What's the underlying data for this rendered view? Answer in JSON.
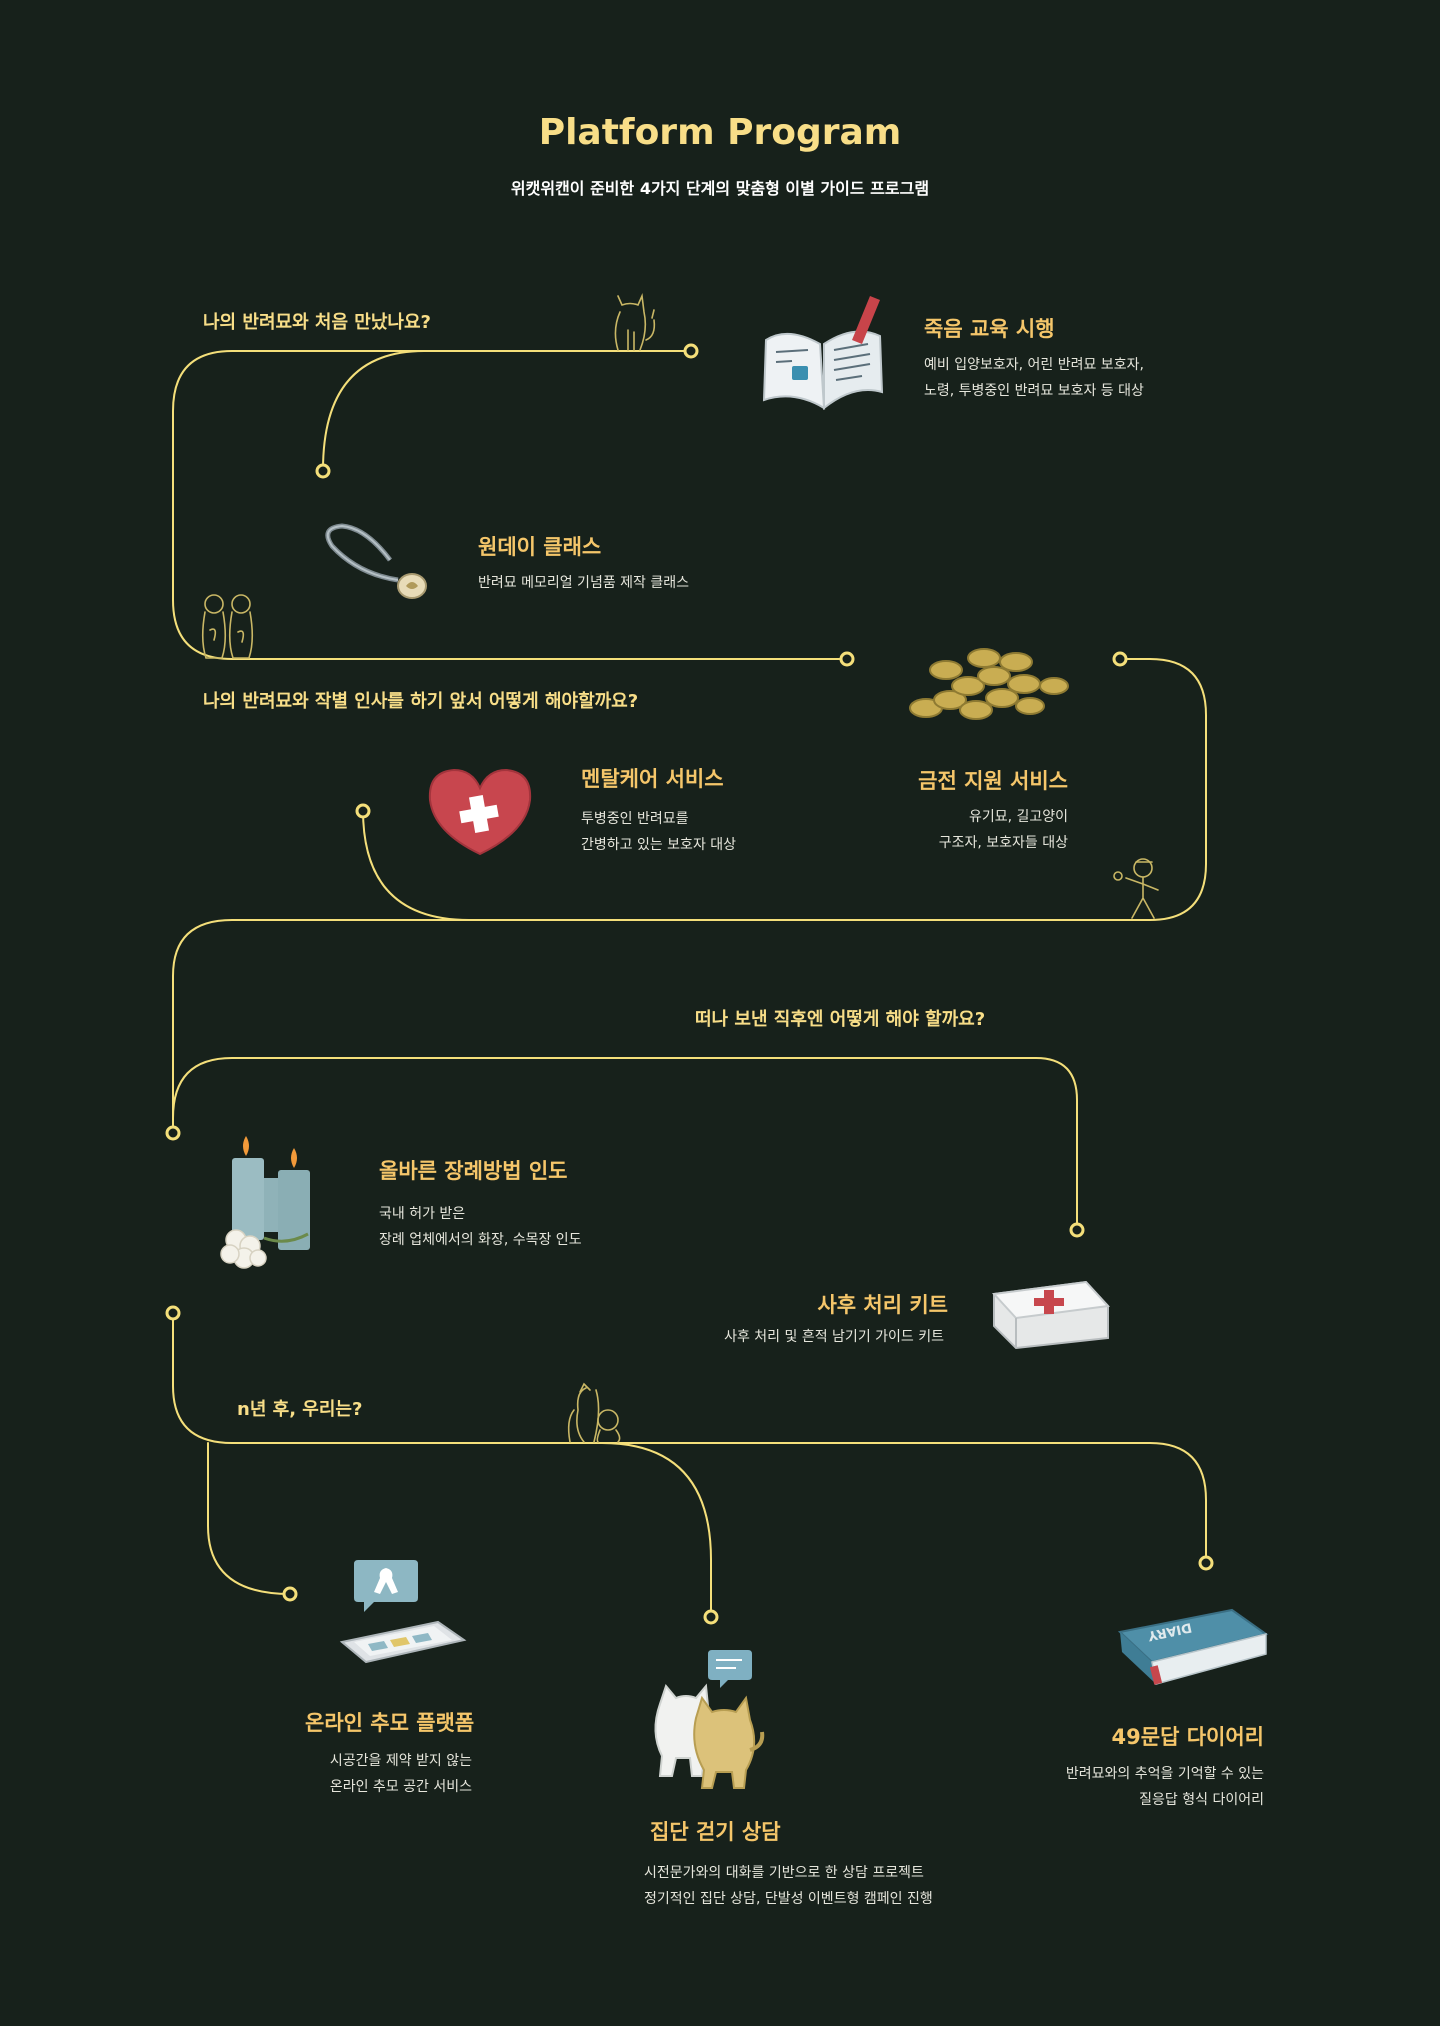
{
  "header": {
    "title": "Platform Program",
    "subtitle": "위캣위캔이 준비한 4가지 단계의 맞춤형 이별 가이드 프로그램"
  },
  "stages": [
    {
      "question": "나의 반려묘와 처음 만났나요?",
      "programs": [
        {
          "title": "죽음 교육 시행",
          "lines": [
            "예비 입양보호자, 어린 반려묘 보호자,",
            "노령, 투병중인 반려묘 보호자 등 대상"
          ],
          "icon": "open-book-icon"
        },
        {
          "title": "원데이 클래스",
          "lines": [
            "반려묘 메모리얼 기념품 제작 클래스"
          ],
          "icon": "pendant-necklace-icon"
        }
      ]
    },
    {
      "question": "나의 반려묘와 작별 인사를 하기 앞서 어떻게 해야할까요?",
      "programs": [
        {
          "title": "멘탈케어 서비스",
          "lines": [
            "투병중인 반려묘를",
            "간병하고 있는 보호자 대상"
          ],
          "icon": "heart-cross-icon"
        },
        {
          "title": "금전 지원 서비스",
          "lines": [
            "유기묘, 길고양이",
            "구조자, 보호자들 대상"
          ],
          "icon": "coins-icon"
        }
      ]
    },
    {
      "question": "떠나 보낸 직후엔 어떻게 해야 할까요?",
      "programs": [
        {
          "title": "올바른 장례방법 인도",
          "lines": [
            "국내 허가 받은",
            "장례 업체에서의 화장, 수목장 인도"
          ],
          "icon": "candles-flower-icon"
        },
        {
          "title": "사후 처리 키트",
          "lines": [
            "사후 처리 및 흔적 남기기 가이드 키트"
          ],
          "icon": "first-aid-kit-icon"
        }
      ]
    },
    {
      "question": "n년 후, 우리는?",
      "programs": [
        {
          "title": "온라인 추모 플랫폼",
          "lines": [
            "시공간을 제약 받지 않는",
            "온라인 추모 공간 서비스"
          ],
          "icon": "tablet-ribbon-icon"
        },
        {
          "title": "집단 걷기 상담",
          "lines": [
            "시전문가와의 대화를 기반으로 한 상담 프로젝트",
            "정기적인 집단 상담, 단발성 이벤트형 캠페인 진행"
          ],
          "icon": "two-cats-icon"
        },
        {
          "title": "49문답 다이어리",
          "lines": [
            "반려묘와의 추억을 기억할 수 있는",
            "질응답 형식 다이어리"
          ],
          "icon": "diary-book-icon"
        }
      ]
    }
  ],
  "colors": {
    "background": "#17211b",
    "path": "#f4df7a",
    "question": "#f8de88",
    "heading": "#f5c66a",
    "body_text": "#e6e6dc"
  }
}
